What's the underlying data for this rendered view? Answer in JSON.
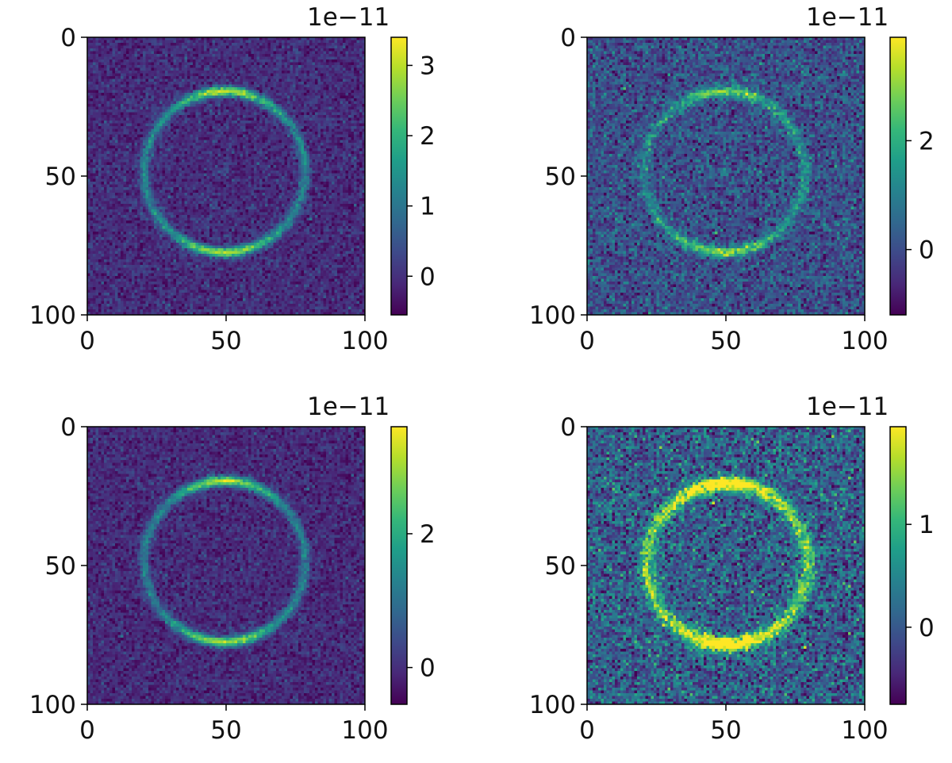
{
  "figure": {
    "layout": "2x2 grid of heatmap panels, each with a vertical colorbar on its right"
  },
  "colormap": {
    "name": "viridis",
    "stops": [
      "#440154",
      "#482878",
      "#3e4989",
      "#31688e",
      "#26828e",
      "#1f9e89",
      "#35b779",
      "#6ece58",
      "#b5de2b",
      "#fde725"
    ]
  },
  "chart_data": [
    {
      "type": "heatmap",
      "xlim": [
        0,
        100
      ],
      "ylim": [
        100,
        0
      ],
      "xticks": [
        0,
        50,
        100
      ],
      "yticks": [
        0,
        50,
        100
      ],
      "xtick_labels": [
        "0",
        "50",
        "100"
      ],
      "ytick_labels": [
        "0",
        "50",
        "100"
      ],
      "image": {
        "size": 100,
        "ring_center": [
          49,
          48
        ],
        "ring_radius": 29,
        "ring_width": 1.8,
        "top_bottom_brightening": 0.85,
        "center_blob": 0.7,
        "noise": 0.25,
        "background": -0.05
      },
      "colorbar": {
        "min": -0.55,
        "max": 3.4,
        "ticks": [
          0,
          1,
          2,
          3
        ],
        "tick_labels": [
          "0",
          "1",
          "2",
          "3"
        ],
        "offset_label": "1e−11"
      }
    },
    {
      "type": "heatmap",
      "xlim": [
        0,
        100
      ],
      "ylim": [
        100,
        0
      ],
      "xticks": [
        0,
        50,
        100
      ],
      "yticks": [
        0,
        50,
        100
      ],
      "xtick_labels": [
        "0",
        "50",
        "100"
      ],
      "ytick_labels": [
        "0",
        "50",
        "100"
      ],
      "image": {
        "size": 100,
        "ring_center": [
          49,
          48
        ],
        "ring_radius": 29,
        "ring_width": 1.9,
        "top_bottom_brightening": 0.8,
        "center_blob": 0.9,
        "noise": 0.55,
        "background": 0.05
      },
      "colorbar": {
        "min": -1.2,
        "max": 3.9,
        "ticks": [
          0,
          2
        ],
        "tick_labels": [
          "0",
          "2"
        ],
        "offset_label": "1e−11"
      }
    },
    {
      "type": "heatmap",
      "xlim": [
        0,
        100
      ],
      "ylim": [
        100,
        0
      ],
      "xticks": [
        0,
        50,
        100
      ],
      "yticks": [
        0,
        50,
        100
      ],
      "xtick_labels": [
        "0",
        "50",
        "100"
      ],
      "ytick_labels": [
        "0",
        "50",
        "100"
      ],
      "image": {
        "size": 100,
        "ring_center": [
          49,
          48
        ],
        "ring_radius": 29,
        "ring_width": 1.8,
        "top_bottom_brightening": 0.9,
        "center_blob": 0.2,
        "noise": 0.25,
        "background": -0.05
      },
      "colorbar": {
        "min": -0.55,
        "max": 3.6,
        "ticks": [
          0,
          2
        ],
        "tick_labels": [
          "0",
          "2"
        ],
        "offset_label": "1e−11"
      }
    },
    {
      "type": "heatmap",
      "xlim": [
        0,
        100
      ],
      "ylim": [
        100,
        0
      ],
      "xticks": [
        0,
        50,
        100
      ],
      "yticks": [
        0,
        50,
        100
      ],
      "xtick_labels": [
        "0",
        "50",
        "100"
      ],
      "ytick_labels": [
        "0",
        "50",
        "100"
      ],
      "image": {
        "size": 100,
        "ring_center": [
          50,
          49
        ],
        "ring_radius": 29,
        "ring_width": 2.6,
        "top_bottom_brightening": 0.6,
        "center_blob": 0.0,
        "noise": 0.4,
        "background": 0.05
      },
      "colorbar": {
        "min": -0.75,
        "max": 1.95,
        "ticks": [
          0,
          1
        ],
        "tick_labels": [
          "0",
          "1"
        ],
        "offset_label": "1e−11"
      }
    }
  ]
}
